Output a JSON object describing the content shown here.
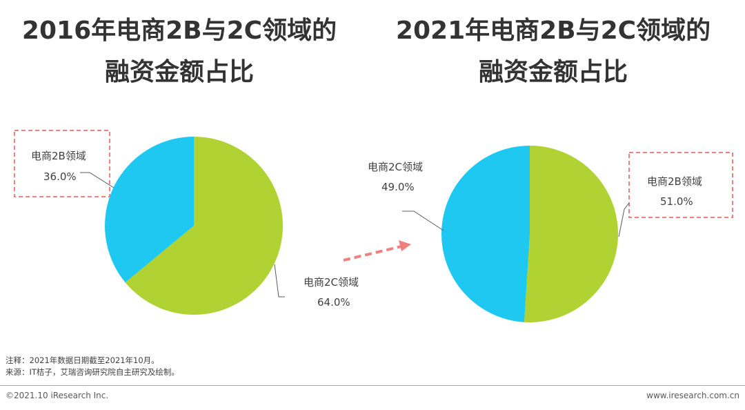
{
  "titles": {
    "left": [
      "2016年电商2B与2C领域的",
      "融资金额占比"
    ],
    "right": [
      "2021年电商2B与2C领域的",
      "融资金额占比"
    ]
  },
  "colors": {
    "2B_left": "#1ec8f0",
    "2C_left": "#b1d233",
    "2B_right": "#b1d233",
    "2C_right": "#1ec8f0",
    "highlight_box": "#f08080",
    "arrow": "#f08080"
  },
  "chart_data": [
    {
      "type": "pie",
      "title": "2016年电商2B与2C领域的融资金额占比",
      "slices": [
        {
          "label": "电商2C领域",
          "value": 64.0,
          "value_text": "64.0%"
        },
        {
          "label": "电商2B领域",
          "value": 36.0,
          "value_text": "36.0%"
        }
      ]
    },
    {
      "type": "pie",
      "title": "2021年电商2B与2C领域的融资金额占比",
      "slices": [
        {
          "label": "电商2B领域",
          "value": 51.0,
          "value_text": "51.0%"
        },
        {
          "label": "电商2C领域",
          "value": 49.0,
          "value_text": "49.0%"
        }
      ]
    }
  ],
  "footer": {
    "note": "注释：2021年数据日期截至2021年10月。",
    "source": "来源：IT桔子，艾瑞咨询研究院自主研究及绘制。",
    "copyright": "©2021.10 iResearch Inc.",
    "website": "www.iresearch.com.cn"
  }
}
